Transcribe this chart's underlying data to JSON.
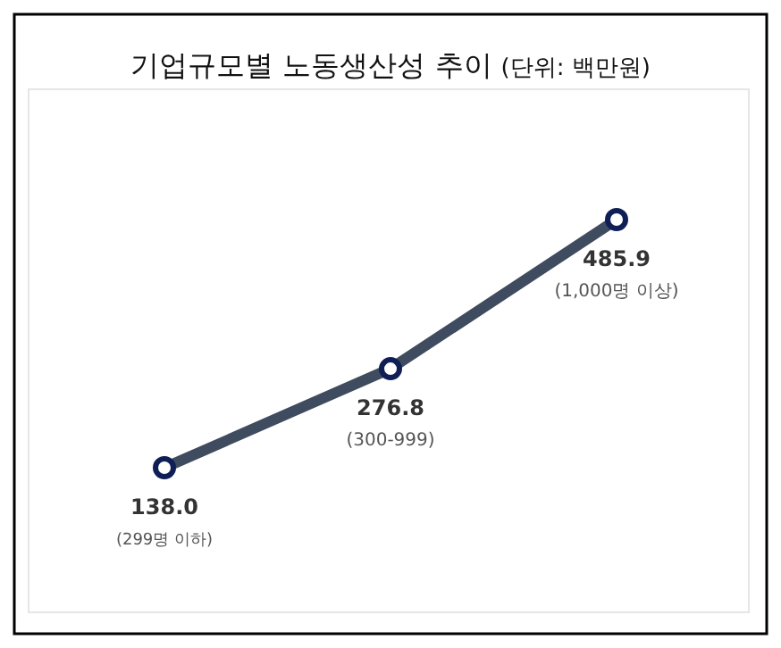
{
  "chart_data": {
    "type": "line",
    "title": "기업규모별 노동생산성 추이",
    "subtitle": "(단위: 백만원)",
    "categories": [
      null,
      null,
      null
    ],
    "annotations": [
      "(299명 이하)",
      "(300-999)",
      "(1,000명 이상)"
    ],
    "series": [
      {
        "color": "#3f4b5e",
        "values": [
          138.0,
          276.8,
          485.9
        ],
        "value_labels": [
          "138.0",
          "276.8",
          "485.9"
        ]
      }
    ],
    "marker": "circle",
    "line_style": "solid"
  }
}
